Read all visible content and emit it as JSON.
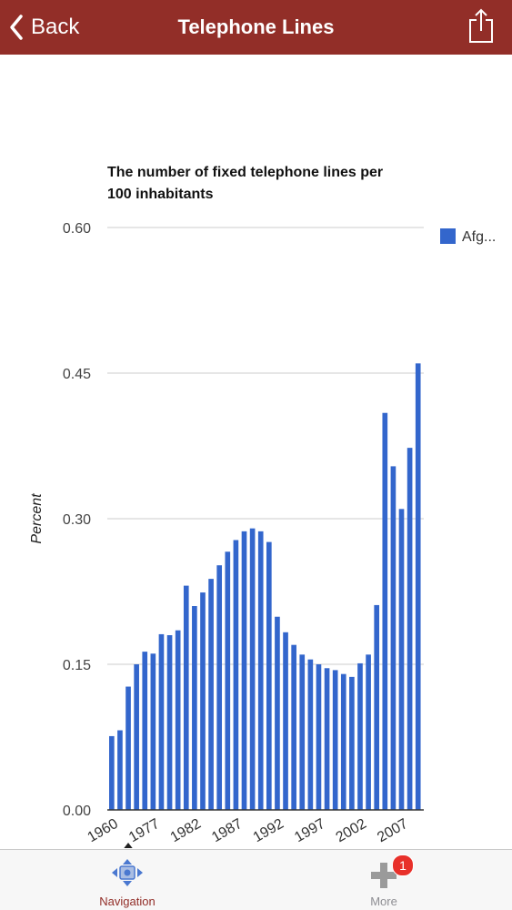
{
  "header": {
    "back_label": "Back",
    "title": "Telephone Lines",
    "back_icon": "chevron-left-icon",
    "share_icon": "share-icon"
  },
  "colors": {
    "header_bg": "#922e28",
    "bar": "#3366cc",
    "active_tab": "#922e28",
    "badge": "#e8302a"
  },
  "chart_data": {
    "type": "bar",
    "title_lines": [
      "The number of fixed telephone lines per",
      "100 inhabitants"
    ],
    "ylabel": "Percent",
    "ylim": [
      0,
      0.6
    ],
    "yticks": [
      "0.00",
      "0.15",
      "0.30",
      "0.45",
      "0.60"
    ],
    "legend": {
      "label": "Afg...",
      "position": "top-right"
    },
    "xtick_labels": [
      {
        "label": "1960",
        "index": 0
      },
      {
        "label": "1977",
        "index": 5
      },
      {
        "label": "1982",
        "index": 10
      },
      {
        "label": "1987",
        "index": 15
      },
      {
        "label": "1992",
        "index": 20
      },
      {
        "label": "1997",
        "index": 25
      },
      {
        "label": "2002",
        "index": 30
      },
      {
        "label": "2007",
        "index": 35
      }
    ],
    "values": [
      0.076,
      0.082,
      0.127,
      0.15,
      0.163,
      0.161,
      0.181,
      0.18,
      0.185,
      0.231,
      0.21,
      0.224,
      0.238,
      0.252,
      0.266,
      0.278,
      0.287,
      0.29,
      0.287,
      0.276,
      0.199,
      0.183,
      0.17,
      0.16,
      0.155,
      0.15,
      0.146,
      0.144,
      0.14,
      0.137,
      0.151,
      0.16,
      0.211,
      0.409,
      0.354,
      0.31,
      0.373,
      0.46
    ]
  },
  "tabbar": {
    "navigation_label": "Navigation",
    "more_label": "More",
    "more_badge": "1",
    "navigation_icon": "navigation-icon",
    "more_icon": "plus-icon"
  }
}
